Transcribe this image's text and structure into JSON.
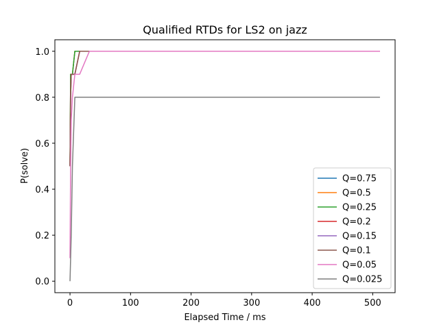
{
  "chart_data": {
    "type": "line",
    "title": "Qualified RTDs for LS2 on jazz",
    "xlabel": "Elapsed Time / ms",
    "ylabel": "P(solve)",
    "xlim": [
      -25,
      537
    ],
    "ylim": [
      -0.05,
      1.05
    ],
    "xticks": [
      0,
      100,
      200,
      300,
      400,
      500
    ],
    "yticks": [
      0.0,
      0.2,
      0.4,
      0.6,
      0.8,
      1.0
    ],
    "xtick_labels": [
      "0",
      "100",
      "200",
      "300",
      "400",
      "500"
    ],
    "ytick_labels": [
      "0.0",
      "0.2",
      "0.4",
      "0.6",
      "0.8",
      "1.0"
    ],
    "grid": false,
    "legend_position": "lower-right",
    "series": [
      {
        "name": "Q=0.75",
        "color": "#1f77b4",
        "x": [
          0,
          1,
          2,
          4,
          8,
          16,
          512
        ],
        "y": [
          0.5,
          0.9,
          0.9,
          0.9,
          1.0,
          1.0,
          1.0
        ]
      },
      {
        "name": "Q=0.5",
        "color": "#ff7f0e",
        "x": [
          0,
          1,
          2,
          4,
          8,
          16,
          512
        ],
        "y": [
          0.5,
          0.9,
          0.9,
          0.9,
          1.0,
          1.0,
          1.0
        ]
      },
      {
        "name": "Q=0.25",
        "color": "#2ca02c",
        "x": [
          0,
          1,
          2,
          4,
          8,
          16,
          512
        ],
        "y": [
          0.5,
          0.9,
          0.9,
          0.9,
          1.0,
          1.0,
          1.0
        ]
      },
      {
        "name": "Q=0.2",
        "color": "#d62728",
        "x": [
          0,
          1,
          2,
          4,
          8,
          16,
          512
        ],
        "y": [
          0.5,
          0.8,
          0.9,
          0.9,
          0.9,
          1.0,
          1.0
        ]
      },
      {
        "name": "Q=0.15",
        "color": "#9467bd",
        "x": [
          0,
          1,
          2,
          4,
          8,
          16,
          512
        ],
        "y": [
          0.5,
          0.8,
          0.9,
          0.9,
          0.9,
          1.0,
          1.0
        ]
      },
      {
        "name": "Q=0.1",
        "color": "#8c564b",
        "x": [
          0,
          1,
          2,
          4,
          8,
          16,
          512
        ],
        "y": [
          0.5,
          0.8,
          0.9,
          0.9,
          0.9,
          1.0,
          1.0
        ]
      },
      {
        "name": "Q=0.05",
        "color": "#e377c2",
        "x": [
          0,
          1,
          2,
          4,
          8,
          16,
          32,
          512
        ],
        "y": [
          0.1,
          0.5,
          0.7,
          0.8,
          0.9,
          0.9,
          1.0,
          1.0
        ]
      },
      {
        "name": "Q=0.025",
        "color": "#7f7f7f",
        "x": [
          0,
          1,
          2,
          4,
          8,
          16,
          512
        ],
        "y": [
          0.0,
          0.1,
          0.2,
          0.5,
          0.8,
          0.8,
          0.8
        ]
      }
    ]
  }
}
